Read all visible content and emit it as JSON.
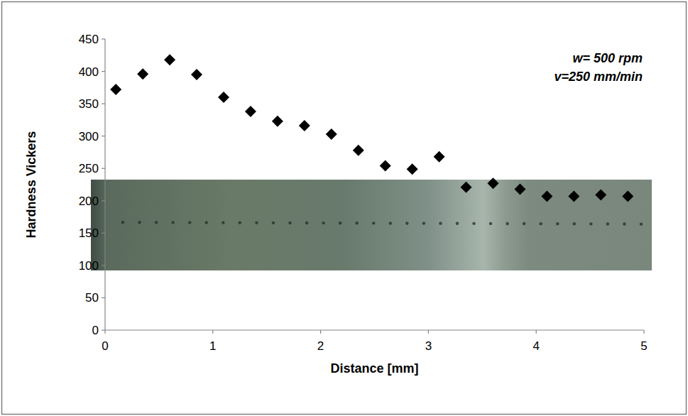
{
  "chart_data": {
    "type": "scatter",
    "x_label": "Distance [mm]",
    "y_label": "Hardness Vickers",
    "annotations": [
      "w= 500 rpm",
      "v=250 mm/min"
    ],
    "x": [
      0.1,
      0.35,
      0.6,
      0.85,
      1.1,
      1.35,
      1.6,
      1.85,
      2.1,
      2.35,
      2.6,
      2.85,
      3.1,
      3.35,
      3.6,
      3.85,
      4.1,
      4.35,
      4.6,
      4.85
    ],
    "values": [
      372,
      396,
      418,
      395,
      360,
      338,
      323,
      316,
      303,
      278,
      254,
      249,
      268,
      221,
      227,
      218,
      207,
      207,
      209,
      207
    ],
    "color": "#000000",
    "marker": "diamond",
    "xlim": [
      0,
      5
    ],
    "xticks": [
      0,
      1,
      2,
      3,
      4,
      5
    ],
    "ylim": [
      0,
      450
    ],
    "yticks": [
      0,
      50,
      100,
      150,
      200,
      250,
      300,
      350,
      400,
      450
    ],
    "grid": false
  }
}
